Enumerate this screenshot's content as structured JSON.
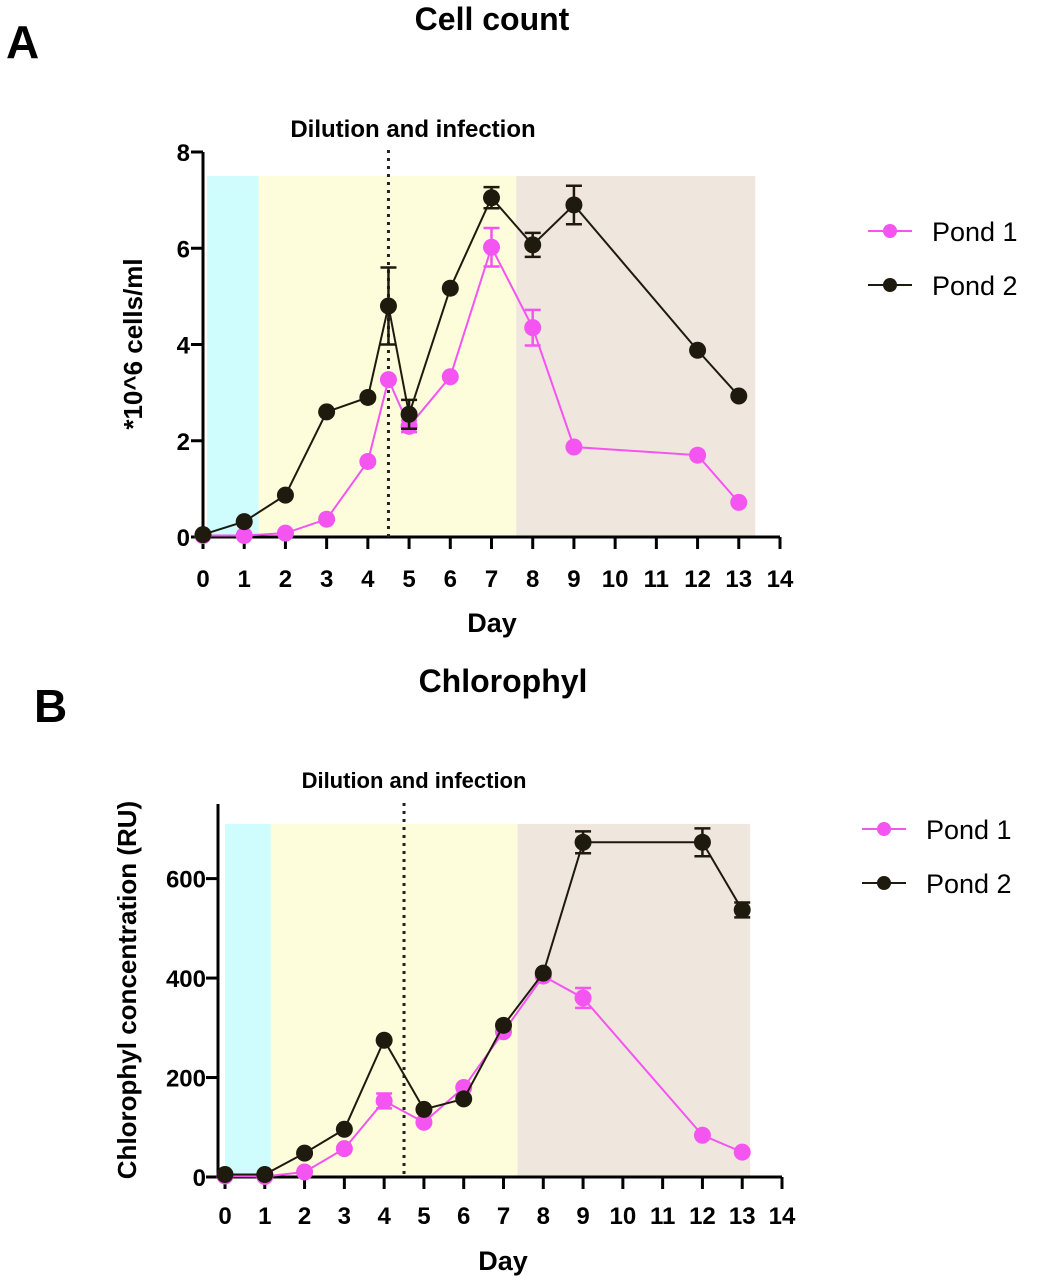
{
  "colors": {
    "pond1": "#f454f0",
    "pond2": "#1f1a0e",
    "cyan": "#cffcfd",
    "yellow": "#fdfddc",
    "tan": "#efe7de"
  },
  "chart_data": [
    {
      "type": "line",
      "panel_label": "A",
      "title": "Cell count",
      "xlabel": "Day",
      "ylabel": "*10^6 cells/ml",
      "annotation": "Dilution and infection",
      "annotation_x": 4.5,
      "xlim": [
        0,
        14
      ],
      "ylim": [
        0,
        8
      ],
      "xticks": [
        "0",
        "1",
        "2",
        "3",
        "4",
        "5",
        "6",
        "7",
        "8",
        "9",
        "10",
        "11",
        "12",
        "13",
        "14"
      ],
      "yticks": [
        "0",
        "2",
        "4",
        "6",
        "8"
      ],
      "shaded_regions": [
        {
          "from": 0.1,
          "to": 1.35,
          "color": "cyan"
        },
        {
          "from": 1.35,
          "to": 7.6,
          "color": "yellow"
        },
        {
          "from": 7.6,
          "to": 13.4,
          "color": "tan"
        }
      ],
      "shaded_top": 7.5,
      "legend": "right",
      "series": [
        {
          "name": "Pond 1",
          "color": "pond1",
          "x": [
            0,
            1,
            2,
            3,
            4,
            4.5,
            5,
            6,
            7,
            8,
            9,
            12,
            13
          ],
          "y": [
            0.03,
            0.03,
            0.08,
            0.37,
            1.57,
            3.27,
            2.3,
            3.33,
            6.02,
            4.35,
            1.87,
            1.7,
            0.72
          ],
          "err": [
            0,
            0,
            0,
            0,
            0,
            0,
            0.12,
            0,
            0.4,
            0.37,
            0,
            0,
            0
          ]
        },
        {
          "name": "Pond 2",
          "color": "pond2",
          "x": [
            0,
            1,
            2,
            3,
            4,
            4.5,
            5,
            6,
            7,
            8,
            9,
            12,
            13
          ],
          "y": [
            0.05,
            0.32,
            0.87,
            2.6,
            2.9,
            4.8,
            2.55,
            5.17,
            7.05,
            6.07,
            6.9,
            3.88,
            2.93
          ],
          "err": [
            0,
            0,
            0,
            0,
            0,
            0.8,
            0.3,
            0,
            0.22,
            0.25,
            0.4,
            0,
            0
          ]
        }
      ]
    },
    {
      "type": "line",
      "panel_label": "B",
      "title": "Chlorophyl",
      "xlabel": "Day",
      "ylabel": "Chlorophyl concentration (RU)",
      "annotation": "Dilution and infection",
      "annotation_x": 4.5,
      "xlim": [
        0,
        14
      ],
      "ylim": [
        0,
        750
      ],
      "xticks": [
        "0",
        "1",
        "2",
        "3",
        "4",
        "5",
        "6",
        "7",
        "8",
        "9",
        "10",
        "11",
        "12",
        "13",
        "14"
      ],
      "yticks": [
        "0",
        "200",
        "400",
        "600"
      ],
      "shaded_regions": [
        {
          "from": 0,
          "to": 1.15,
          "color": "cyan"
        },
        {
          "from": 1.15,
          "to": 7.35,
          "color": "yellow"
        },
        {
          "from": 7.35,
          "to": 13.2,
          "color": "tan"
        }
      ],
      "shaded_top": 710,
      "legend": "right",
      "series": [
        {
          "name": "Pond 1",
          "color": "pond1",
          "x": [
            0,
            1,
            2,
            3,
            4,
            5,
            6,
            7,
            8,
            9,
            12,
            13
          ],
          "y": [
            2,
            1,
            10,
            57,
            153,
            110,
            180,
            292,
            404,
            360,
            84,
            50
          ],
          "err": [
            0,
            0,
            0,
            0,
            15,
            0,
            0,
            0,
            0,
            20,
            0,
            0
          ]
        },
        {
          "name": "Pond 2",
          "color": "pond2",
          "x": [
            0,
            1,
            2,
            3,
            4,
            5,
            6,
            7,
            8,
            9,
            12,
            13
          ],
          "y": [
            5,
            5,
            48,
            96,
            275,
            136,
            157,
            305,
            410,
            673,
            673,
            537
          ],
          "err": [
            0,
            0,
            0,
            0,
            0,
            0,
            0,
            0,
            0,
            22,
            28,
            15
          ]
        }
      ]
    }
  ]
}
